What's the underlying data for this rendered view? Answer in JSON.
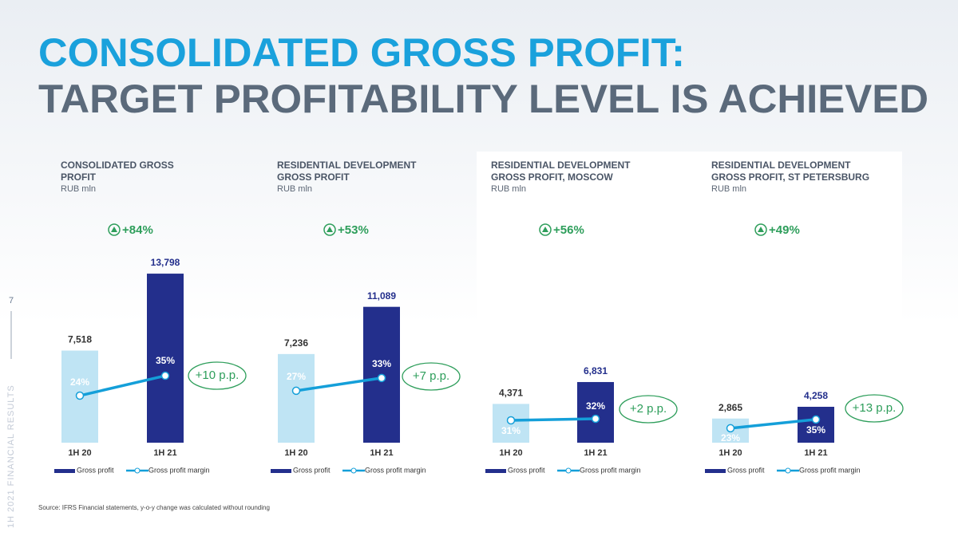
{
  "header": {
    "title": "CONSOLIDATED GROSS PROFIT:",
    "subtitle": "TARGET PROFITABILITY LEVEL IS ACHIEVED"
  },
  "page_number": "7",
  "sidebar_label": "1H 2021 FINANCIAL RESULTS",
  "source": "Source: IFRS Financial statements, y-o-y change was calculated without rounding",
  "chart_data": [
    {
      "type": "bar",
      "title": "CONSOLIDATED GROSS PROFIT",
      "subtitle": "RUB mln",
      "change": "+84%",
      "margin_change": "+10 p.p.",
      "categories": [
        "1H 20",
        "1H 21"
      ],
      "bar_colors": [
        "#bfe4f4",
        "#232f8c"
      ],
      "series": [
        {
          "name": "Gross profit",
          "color": "#232f8c",
          "values": [
            7518,
            13798
          ],
          "value_labels": [
            "7,518",
            "13,798"
          ]
        },
        {
          "name": "Gross profit margin",
          "color": "#149fd9",
          "axis": "y2",
          "values": [
            24,
            35
          ],
          "value_labels": [
            "24%",
            "35%"
          ]
        }
      ]
    },
    {
      "type": "bar",
      "title": "RESIDENTIAL DEVELOPMENT GROSS PROFIT",
      "subtitle": "RUB mln",
      "change": "+53%",
      "margin_change": "+7 p.p.",
      "categories": [
        "1H 20",
        "1H 21"
      ],
      "bar_colors": [
        "#bfe4f4",
        "#232f8c"
      ],
      "series": [
        {
          "name": "Gross profit",
          "color": "#232f8c",
          "values": [
            7236,
            11089
          ],
          "value_labels": [
            "7,236",
            "11,089"
          ]
        },
        {
          "name": "Gross profit margin",
          "color": "#149fd9",
          "axis": "y2",
          "values": [
            27,
            33
          ],
          "value_labels": [
            "27%",
            "33%"
          ]
        }
      ]
    },
    {
      "type": "bar",
      "title": "RESIDENTIAL DEVELOPMENT GROSS PROFIT, MOSCOW",
      "subtitle": "RUB mln",
      "change": "+56%",
      "margin_change": "+2 p.p.",
      "categories": [
        "1H 20",
        "1H 21"
      ],
      "bar_colors": [
        "#bfe4f4",
        "#232f8c"
      ],
      "series": [
        {
          "name": "Gross profit",
          "color": "#232f8c",
          "values": [
            4371,
            6831
          ],
          "value_labels": [
            "4,371",
            "6,831"
          ]
        },
        {
          "name": "Gross profit margin",
          "color": "#149fd9",
          "axis": "y2",
          "values": [
            31,
            32
          ],
          "value_labels": [
            "31%",
            "32%"
          ]
        }
      ]
    },
    {
      "type": "bar",
      "title": "RESIDENTIAL DEVELOPMENT GROSS PROFIT, ST PETERSBURG",
      "subtitle": "RUB mln",
      "change": "+49%",
      "margin_change": "+13 p.p.",
      "categories": [
        "1H 20",
        "1H 21"
      ],
      "bar_colors": [
        "#bfe4f4",
        "#232f8c"
      ],
      "series": [
        {
          "name": "Gross profit",
          "color": "#232f8c",
          "values": [
            2865,
            4258
          ],
          "value_labels": [
            "2,865",
            "4,258"
          ]
        },
        {
          "name": "Gross profit margin",
          "color": "#149fd9",
          "axis": "y2",
          "values": [
            23,
            35
          ],
          "value_labels": [
            "23%",
            "35%"
          ]
        }
      ]
    }
  ]
}
